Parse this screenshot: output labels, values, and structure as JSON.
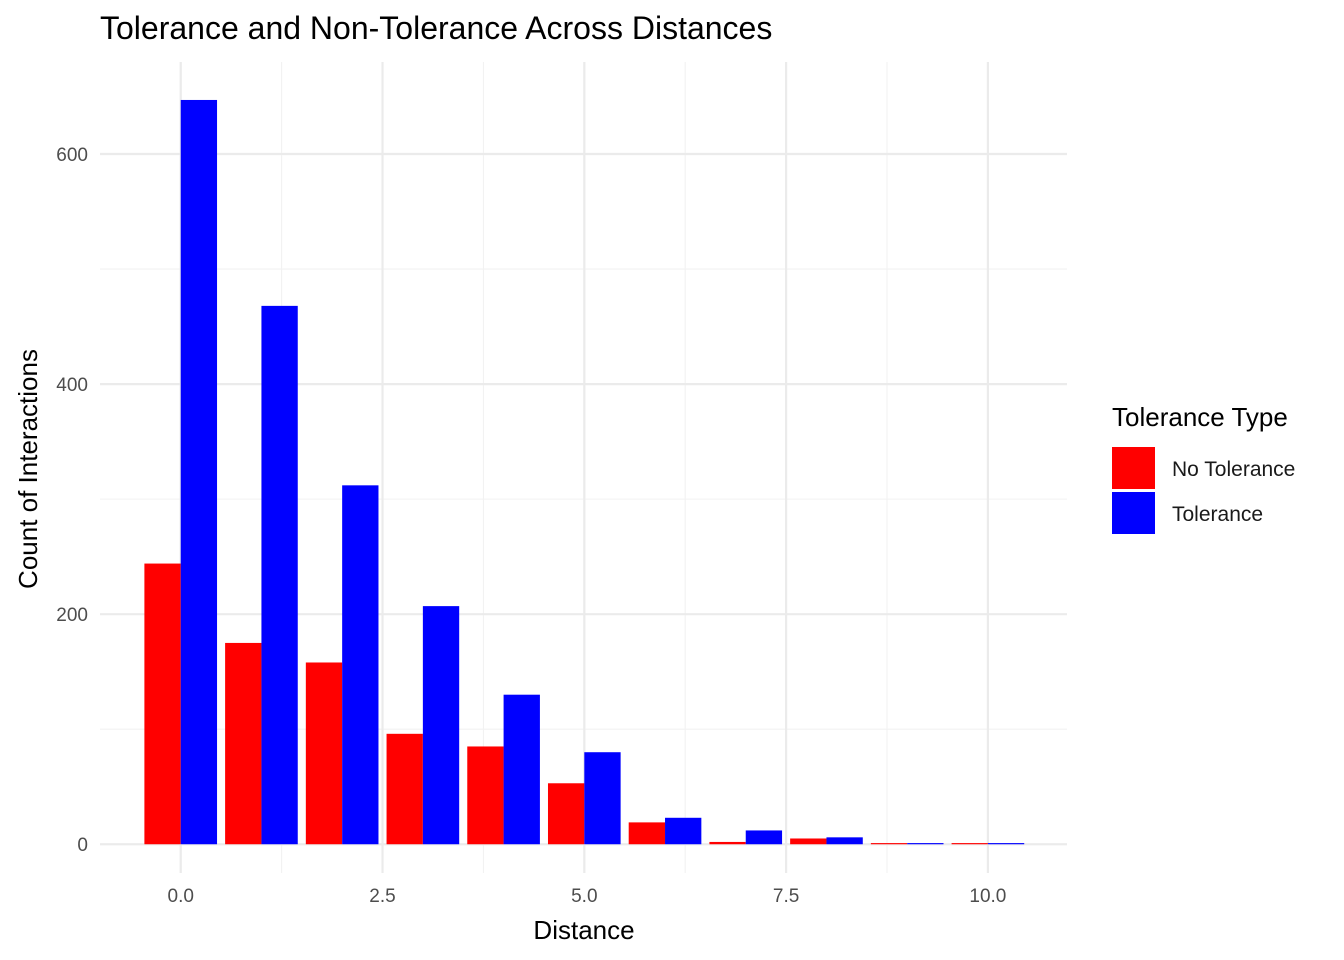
{
  "chart_data": {
    "type": "bar",
    "title": "Tolerance and Non-Tolerance Across Distances",
    "xlabel": "Distance",
    "ylabel": "Count of Interactions",
    "x": [
      0,
      1,
      2,
      3,
      4,
      5,
      6,
      7,
      8,
      9,
      10
    ],
    "xlim": [
      -1.0,
      10.98
    ],
    "ylim": [
      -25,
      680
    ],
    "x_ticks": [
      0.0,
      2.5,
      5.0,
      7.5,
      10.0
    ],
    "x_tick_labels": [
      "0.0",
      "2.5",
      "5.0",
      "7.5",
      "10.0"
    ],
    "y_ticks": [
      0,
      200,
      400,
      600
    ],
    "y_tick_labels": [
      "0",
      "200",
      "400",
      "600"
    ],
    "grid": true,
    "legend": {
      "title": "Tolerance Type",
      "position": "right"
    },
    "series": [
      {
        "name": "No Tolerance",
        "color": "#ff0000",
        "values": [
          244,
          175,
          158,
          96,
          85,
          53,
          19,
          2,
          5,
          1,
          1
        ]
      },
      {
        "name": "Tolerance",
        "color": "#0000ff",
        "values": [
          647,
          468,
          312,
          207,
          130,
          80,
          23,
          12,
          6,
          1,
          1
        ]
      }
    ]
  }
}
